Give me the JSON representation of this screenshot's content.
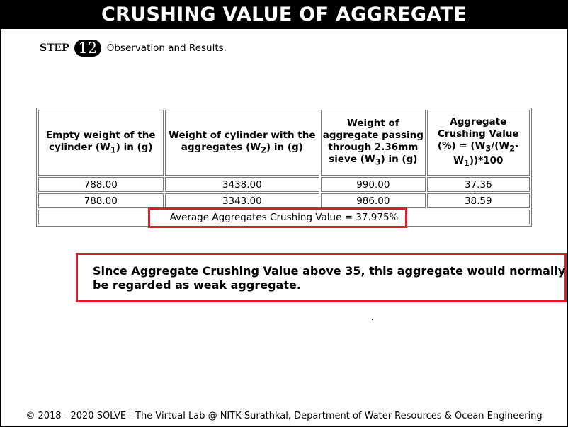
{
  "title": "CRUSHING VALUE OF AGGREGATE",
  "step": {
    "label": "STEP",
    "number": "12",
    "text": "Observation and Results."
  },
  "table": {
    "headers": [
      {
        "pre": "Empty weight of the cylinder (W",
        "sub": "1",
        "post": ") in (g)"
      },
      {
        "pre": "Weight of cylinder with the aggregates (W",
        "sub": "2",
        "post": ") in (g)"
      },
      {
        "pre": "Weight of aggregate passing through 2.36mm sieve (W",
        "sub": "3",
        "post": ") in (g)"
      },
      {
        "pre": "Aggregate Crushing Value (%) = (W",
        "sub": "3",
        "mid": "/(W",
        "sub2": "2",
        "mid2": "-W",
        "sub3": "1",
        "post": "))*100"
      }
    ],
    "rows": [
      [
        "788.00",
        "3438.00",
        "990.00",
        "37.36"
      ],
      [
        "788.00",
        "3343.00",
        "986.00",
        "38.59"
      ]
    ],
    "average": "Average Aggregates Crushing Value = 37.975%"
  },
  "conclusion": "Since Aggregate Crushing Value above 35, this aggregate would normally be regarded as weak aggregate.",
  "footer": "© 2018 - 2020 SOLVE - The Virtual Lab @ NITK Surathkal, Department of Water Resources & Ocean Engineering",
  "colors": {
    "highlight": "#e11b27",
    "title_bg": "#000000"
  }
}
